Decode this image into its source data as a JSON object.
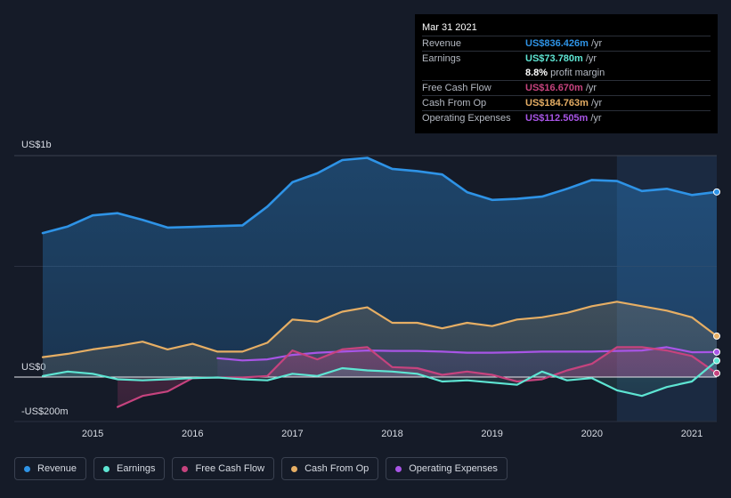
{
  "chart_data": {
    "type": "line",
    "y_axis": {
      "top_label": "US$1b",
      "zero_label": "US$0",
      "bottom_label": "-US$200m",
      "ylim": [
        -200,
        1000
      ]
    },
    "xlim": [
      2014.5,
      2021.25
    ],
    "x_ticks": [
      "2015",
      "2016",
      "2017",
      "2018",
      "2019",
      "2020",
      "2021"
    ],
    "x_tick_values": [
      2015,
      2016,
      2017,
      2018,
      2019,
      2020,
      2021
    ],
    "highlight_start": 2020.25,
    "series": [
      {
        "name": "Revenue",
        "color": "#2e93e6",
        "x": [
          2014.5,
          2014.75,
          2015.0,
          2015.25,
          2015.5,
          2015.75,
          2016.0,
          2016.25,
          2016.5,
          2016.75,
          2017.0,
          2017.25,
          2017.5,
          2017.75,
          2018.0,
          2018.25,
          2018.5,
          2018.75,
          2019.0,
          2019.25,
          2019.5,
          2019.75,
          2020.0,
          2020.25,
          2020.5,
          2020.75,
          2021.0,
          2021.25
        ],
        "values": [
          650,
          680,
          730,
          740,
          710,
          675,
          678,
          682,
          685,
          770,
          880,
          920,
          980,
          990,
          940,
          930,
          915,
          835,
          800,
          805,
          815,
          850,
          890,
          885,
          840,
          850,
          822,
          836
        ]
      },
      {
        "name": "Earnings",
        "color": "#5ee5d3",
        "x": [
          2014.5,
          2014.75,
          2015.0,
          2015.25,
          2015.5,
          2015.75,
          2016.0,
          2016.25,
          2016.5,
          2016.75,
          2017.0,
          2017.25,
          2017.5,
          2017.75,
          2018.0,
          2018.25,
          2018.5,
          2018.75,
          2019.0,
          2019.25,
          2019.5,
          2019.75,
          2020.0,
          2020.25,
          2020.5,
          2020.75,
          2021.0,
          2021.25
        ],
        "values": [
          5,
          25,
          15,
          -10,
          -15,
          -10,
          -5,
          -2,
          -10,
          -15,
          15,
          5,
          40,
          30,
          25,
          15,
          -20,
          -15,
          -25,
          -35,
          25,
          -15,
          -5,
          -60,
          -85,
          -45,
          -20,
          74
        ]
      },
      {
        "name": "Free Cash Flow",
        "color": "#c6437e",
        "x": [
          2015.25,
          2015.5,
          2015.75,
          2016.0,
          2016.25,
          2016.5,
          2016.75,
          2017.0,
          2017.25,
          2017.5,
          2017.75,
          2018.0,
          2018.25,
          2018.5,
          2018.75,
          2019.0,
          2019.25,
          2019.5,
          2019.75,
          2020.0,
          2020.25,
          2020.5,
          2020.75,
          2021.0,
          2021.25
        ],
        "values": [
          -135,
          -85,
          -65,
          -5,
          -2,
          -2,
          5,
          120,
          80,
          125,
          135,
          45,
          40,
          10,
          25,
          10,
          -20,
          -10,
          30,
          60,
          135,
          135,
          120,
          95,
          17
        ]
      },
      {
        "name": "Cash From Op",
        "color": "#e6ae64",
        "x": [
          2014.5,
          2014.75,
          2015.0,
          2015.25,
          2015.5,
          2015.75,
          2016.0,
          2016.25,
          2016.5,
          2016.75,
          2017.0,
          2017.25,
          2017.5,
          2017.75,
          2018.0,
          2018.25,
          2018.5,
          2018.75,
          2019.0,
          2019.25,
          2019.5,
          2019.75,
          2020.0,
          2020.25,
          2020.5,
          2020.75,
          2021.0,
          2021.25
        ],
        "values": [
          90,
          105,
          125,
          140,
          160,
          125,
          150,
          115,
          115,
          155,
          260,
          250,
          295,
          315,
          245,
          245,
          220,
          245,
          230,
          260,
          270,
          290,
          320,
          340,
          320,
          300,
          270,
          185
        ]
      },
      {
        "name": "Operating Expenses",
        "color": "#a855e6",
        "x": [
          2016.25,
          2016.5,
          2016.75,
          2017.0,
          2017.25,
          2017.5,
          2017.75,
          2018.0,
          2018.25,
          2018.5,
          2018.75,
          2019.0,
          2019.25,
          2019.5,
          2019.75,
          2020.0,
          2020.25,
          2020.5,
          2020.75,
          2021.0,
          2021.25
        ],
        "values": [
          85,
          75,
          80,
          100,
          110,
          115,
          120,
          118,
          118,
          115,
          110,
          110,
          112,
          115,
          115,
          115,
          118,
          120,
          135,
          112,
          113
        ]
      }
    ]
  },
  "tooltip": {
    "date": "Mar 31 2021",
    "rows": [
      {
        "label": "Revenue",
        "value": "US$836.426m",
        "unit": "/yr",
        "color": "#2e93e6"
      },
      {
        "label": "Earnings",
        "value": "US$73.780m",
        "unit": "/yr",
        "color": "#5ee5d3"
      },
      {
        "label": "",
        "value": "8.8%",
        "unit": "profit margin",
        "color": "#ffffff"
      },
      {
        "label": "Free Cash Flow",
        "value": "US$16.670m",
        "unit": "/yr",
        "color": "#c6437e"
      },
      {
        "label": "Cash From Op",
        "value": "US$184.763m",
        "unit": "/yr",
        "color": "#e6ae64"
      },
      {
        "label": "Operating Expenses",
        "value": "US$112.505m",
        "unit": "/yr",
        "color": "#a855e6"
      }
    ]
  },
  "legend": [
    {
      "label": "Revenue",
      "color": "#2e93e6"
    },
    {
      "label": "Earnings",
      "color": "#5ee5d3"
    },
    {
      "label": "Free Cash Flow",
      "color": "#c6437e"
    },
    {
      "label": "Cash From Op",
      "color": "#e6ae64"
    },
    {
      "label": "Operating Expenses",
      "color": "#a855e6"
    }
  ]
}
